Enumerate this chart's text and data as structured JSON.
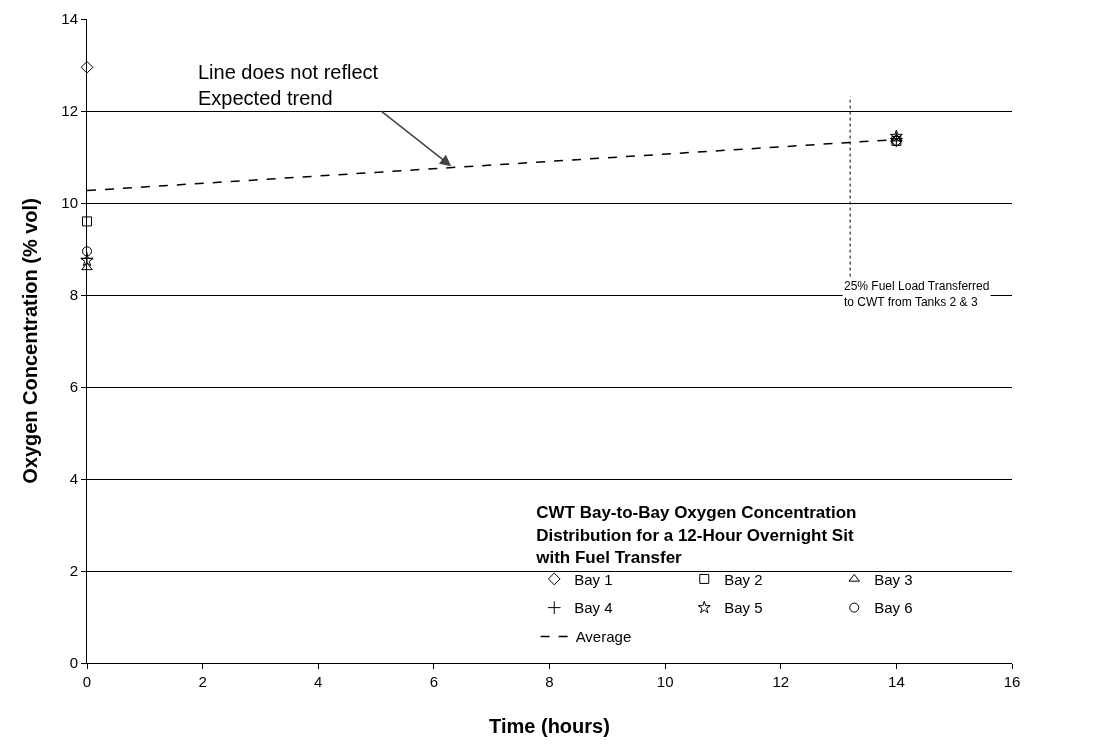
{
  "chart_data": {
    "type": "scatter",
    "xlabel": "Time (hours)",
    "ylabel": "Oxygen Concentration (% vol)",
    "legend_title": "CWT Bay-to-Bay Oxygen Concentration Distribution for a 12-Hour Overnight Sit with Fuel Transfer",
    "x": [
      0,
      14
    ],
    "series": [
      {
        "name": "Bay 1",
        "color": "#000000",
        "marker": "diamond",
        "values": [
          12.95,
          11.35
        ]
      },
      {
        "name": "Bay 2",
        "color": "#000000",
        "marker": "square",
        "values": [
          9.6,
          11.35
        ]
      },
      {
        "name": "Bay 3",
        "color": "#000000",
        "marker": "triangle",
        "values": [
          8.6,
          11.4
        ]
      },
      {
        "name": "Bay 4",
        "color": "#000000",
        "marker": "cross",
        "values": [
          8.8,
          11.4
        ]
      },
      {
        "name": "Bay 5",
        "color": "#000000",
        "marker": "star",
        "values": [
          8.75,
          11.45
        ]
      },
      {
        "name": "Bay 6",
        "color": "#000000",
        "marker": "circle",
        "values": [
          8.95,
          11.35
        ]
      },
      {
        "name": "Average",
        "type": "line",
        "color": "#000000",
        "line_style": "dashed",
        "marker": "none",
        "values": [
          10.27,
          11.38
        ]
      }
    ],
    "xlim": [
      0,
      16
    ],
    "xticks": [
      0,
      2,
      4,
      6,
      8,
      10,
      12,
      14,
      16
    ],
    "ylim": [
      0,
      14
    ],
    "yticks": [
      0,
      2,
      4,
      6,
      8,
      10,
      12,
      14
    ],
    "grid": "y",
    "legend": "bottom right",
    "ref_lines": [
      {
        "axis": "x",
        "value": 13.2,
        "label": "25% Fuel Load Transferred\nto CWT from Tanks 2 & 3",
        "line_style": "dotted",
        "color": "#000000"
      }
    ],
    "annotations": [
      {
        "text": "Line does not reflect\nExpected trend",
        "x": 6.3,
        "y": 10.8
      }
    ]
  }
}
